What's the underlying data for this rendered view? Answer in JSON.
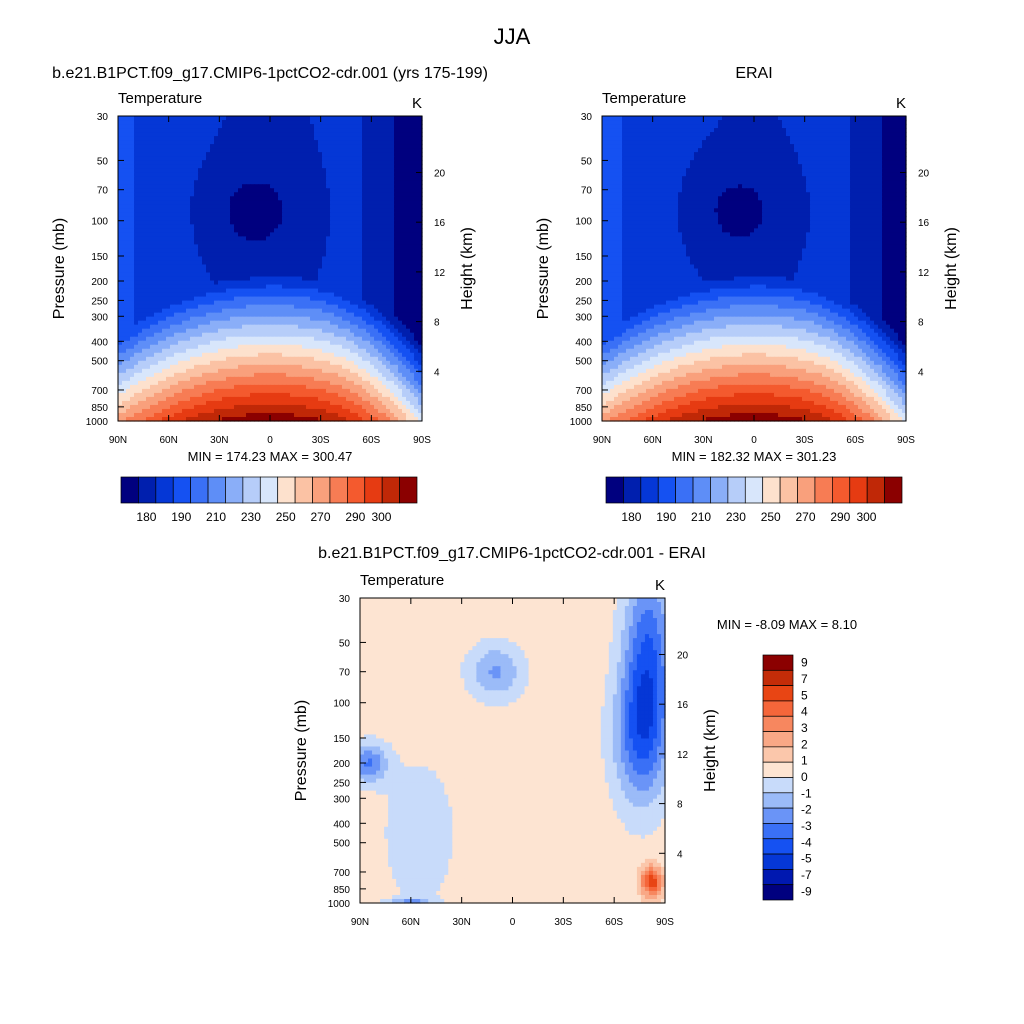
{
  "page_title": "JJA",
  "colors": {
    "model_scale": [
      "#00007f",
      "#001fae",
      "#0537d6",
      "#1551f2",
      "#3a70f6",
      "#5e8ef7",
      "#8aaef8",
      "#b6cdf9",
      "#d8e6fb",
      "#fde1cd",
      "#fbc2a4",
      "#f9a07c",
      "#f77c54",
      "#f45a2e",
      "#e63b12",
      "#c02807",
      "#8b0000"
    ],
    "diff_scale": [
      "#00007f",
      "#0018b0",
      "#0537d6",
      "#1551f2",
      "#3a70f6",
      "#6a94f7",
      "#9bbbf8",
      "#c8dbfa",
      "#fde4d2",
      "#fbc7ab",
      "#f9a886",
      "#f7875f",
      "#f5663a",
      "#e84514",
      "#c42c08",
      "#8b0000"
    ]
  },
  "chart_data": [
    {
      "type": "heatmap",
      "title": "b.e21.B1PCT.f09_g17.CMIP6-1pctCO2-cdr.001 (yrs 175-199)",
      "subtitle_left": "Temperature",
      "subtitle_right": "K",
      "xlabel": "",
      "ylabel": "Pressure (mb)",
      "ylabel_right": "Height (km)",
      "x_ticks": [
        "90N",
        "60N",
        "30N",
        "0",
        "30S",
        "60S",
        "90S"
      ],
      "y_ticks": [
        "30",
        "50",
        "70",
        "100",
        "150",
        "200",
        "250",
        "300",
        "400",
        "500",
        "700",
        "850",
        "1000"
      ],
      "y_values": [
        30,
        50,
        70,
        100,
        150,
        200,
        250,
        300,
        400,
        500,
        700,
        850,
        1000
      ],
      "height_ticks": [
        "4",
        "8",
        "12",
        "16",
        "20"
      ],
      "height_values": [
        4,
        8,
        12,
        16,
        20
      ],
      "ylim": [
        1000,
        30
      ],
      "y_scale": "log",
      "min_max_text": "MIN = 174.23  MAX = 300.47",
      "colorbar_labels": [
        "180",
        "190",
        "210",
        "230",
        "250",
        "270",
        "290",
        "300"
      ],
      "colorbar_levels": [
        180,
        185,
        190,
        200,
        210,
        220,
        230,
        240,
        250,
        260,
        270,
        280,
        290,
        295,
        300,
        305
      ],
      "colorbar_orientation": "horizontal"
    },
    {
      "type": "heatmap",
      "title": "ERAI",
      "subtitle_left": "Temperature",
      "subtitle_right": "K",
      "xlabel": "",
      "ylabel": "Pressure (mb)",
      "ylabel_right": "Height (km)",
      "x_ticks": [
        "90N",
        "60N",
        "30N",
        "0",
        "30S",
        "60S",
        "90S"
      ],
      "y_ticks": [
        "30",
        "50",
        "70",
        "100",
        "150",
        "200",
        "250",
        "300",
        "400",
        "500",
        "700",
        "850",
        "1000"
      ],
      "y_values": [
        30,
        50,
        70,
        100,
        150,
        200,
        250,
        300,
        400,
        500,
        700,
        850,
        1000
      ],
      "height_ticks": [
        "4",
        "8",
        "12",
        "16",
        "20"
      ],
      "height_values": [
        4,
        8,
        12,
        16,
        20
      ],
      "ylim": [
        1000,
        30
      ],
      "y_scale": "log",
      "min_max_text": "MIN = 182.32  MAX = 301.23",
      "colorbar_labels": [
        "180",
        "190",
        "210",
        "230",
        "250",
        "270",
        "290",
        "300"
      ],
      "colorbar_levels": [
        180,
        185,
        190,
        200,
        210,
        220,
        230,
        240,
        250,
        260,
        270,
        280,
        290,
        295,
        300,
        305
      ],
      "colorbar_orientation": "horizontal"
    },
    {
      "type": "heatmap",
      "title": "b.e21.B1PCT.f09_g17.CMIP6-1pctCO2-cdr.001 - ERAI",
      "subtitle_left": "Temperature",
      "subtitle_right": "K",
      "xlabel": "",
      "ylabel": "Pressure (mb)",
      "ylabel_right": "Height (km)",
      "x_ticks": [
        "90N",
        "60N",
        "30N",
        "0",
        "30S",
        "60S",
        "90S"
      ],
      "y_ticks": [
        "30",
        "50",
        "70",
        "100",
        "150",
        "200",
        "250",
        "300",
        "400",
        "500",
        "700",
        "850",
        "1000"
      ],
      "y_values": [
        30,
        50,
        70,
        100,
        150,
        200,
        250,
        300,
        400,
        500,
        700,
        850,
        1000
      ],
      "height_ticks": [
        "4",
        "8",
        "12",
        "16",
        "20"
      ],
      "height_values": [
        4,
        8,
        12,
        16,
        20
      ],
      "ylim": [
        1000,
        30
      ],
      "y_scale": "log",
      "min_max_text": "MIN =  -8.09  MAX =   8.10",
      "colorbar_labels": [
        "9",
        "7",
        "5",
        "4",
        "3",
        "2",
        "1",
        "0",
        "-1",
        "-2",
        "-3",
        "-4",
        "-5",
        "-7",
        "-9"
      ],
      "colorbar_levels": [
        9,
        7,
        5,
        4,
        3,
        2,
        1,
        0,
        -1,
        -2,
        -3,
        -4,
        -5,
        -7,
        -9
      ],
      "colorbar_orientation": "vertical"
    }
  ]
}
